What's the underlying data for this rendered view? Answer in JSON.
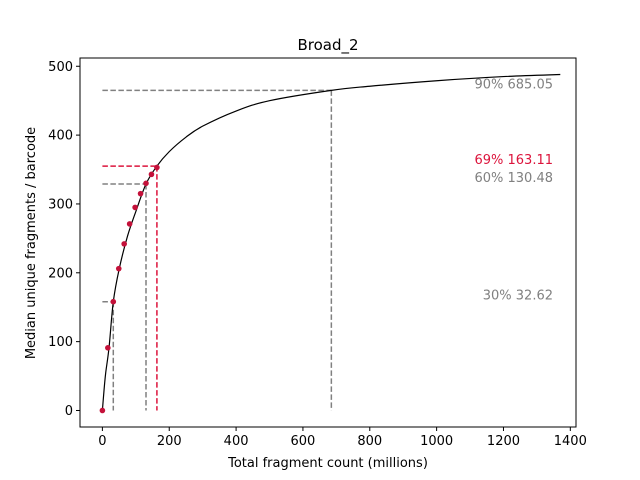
{
  "chart_data": {
    "type": "line",
    "title": "Broad_2",
    "xlabel": "Total fragment count (millions)",
    "ylabel": "Median unique fragments / barcode",
    "xlim": [
      -67,
      1417
    ],
    "ylim": [
      -24,
      512
    ],
    "x_ticks": [
      0,
      200,
      400,
      600,
      800,
      1000,
      1200,
      1400
    ],
    "y_ticks": [
      0,
      100,
      200,
      300,
      400,
      500
    ],
    "grid": false,
    "series": [
      {
        "role": "fitted curve",
        "color": "#000000",
        "x": [
          0,
          5,
          10,
          20,
          32.62,
          50,
          75,
          100,
          130.48,
          163.11,
          200,
          250,
          300,
          400,
          500,
          685.05,
          800,
          1000,
          1200,
          1370
        ],
        "y": [
          0,
          30,
          55,
          92,
          158,
          205,
          253,
          289,
          329,
          355,
          376,
          397,
          413,
          435,
          450,
          465,
          471,
          479,
          485,
          488
        ]
      },
      {
        "role": "observed points",
        "color": "#c4113a",
        "x": [
          0,
          16.3,
          32.6,
          49,
          65.2,
          81.5,
          97.9,
          114.2,
          130.5,
          146.8,
          163.1
        ],
        "y": [
          0,
          91,
          158,
          206,
          242,
          271,
          295,
          315,
          330,
          343,
          353
        ]
      }
    ],
    "annotations": [
      {
        "label": "90% 685.05",
        "x": 685.05,
        "y": 465,
        "color": "#808080"
      },
      {
        "label": "69% 163.11",
        "x": 163.11,
        "y": 355,
        "color": "#dc143c"
      },
      {
        "label": "60% 130.48",
        "x": 130.48,
        "y": 329,
        "color": "#808080"
      },
      {
        "label": "30% 32.62",
        "x": 32.62,
        "y": 158,
        "color": "#808080"
      }
    ]
  }
}
